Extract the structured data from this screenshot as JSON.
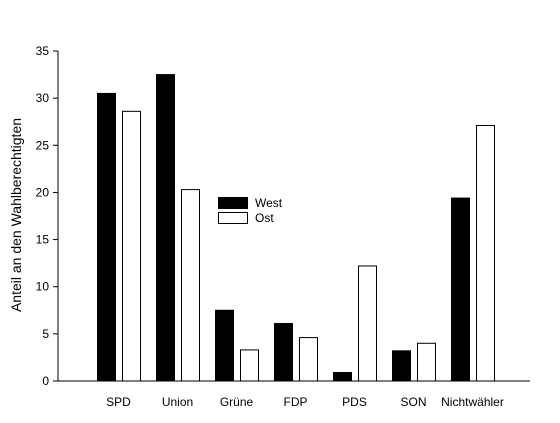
{
  "chart_data": {
    "type": "bar",
    "title": "",
    "xlabel": "",
    "ylabel": "Anteil an den Wahlberechtigten",
    "ylim": [
      0,
      35
    ],
    "yticks": [
      0,
      5,
      10,
      15,
      20,
      25,
      30,
      35
    ],
    "categories": [
      "SPD",
      "Union",
      "Grüne",
      "FDP",
      "PDS",
      "SON",
      "Nichtwähler"
    ],
    "series": [
      {
        "name": "West",
        "color": "#000000",
        "values": [
          30.5,
          32.5,
          7.5,
          6.1,
          0.9,
          3.2,
          19.4
        ]
      },
      {
        "name": "Ost",
        "color": "#ffffff",
        "values": [
          28.6,
          20.3,
          3.3,
          4.6,
          12.2,
          4.0,
          27.1
        ]
      }
    ],
    "grid": false,
    "legend_position": "center"
  }
}
